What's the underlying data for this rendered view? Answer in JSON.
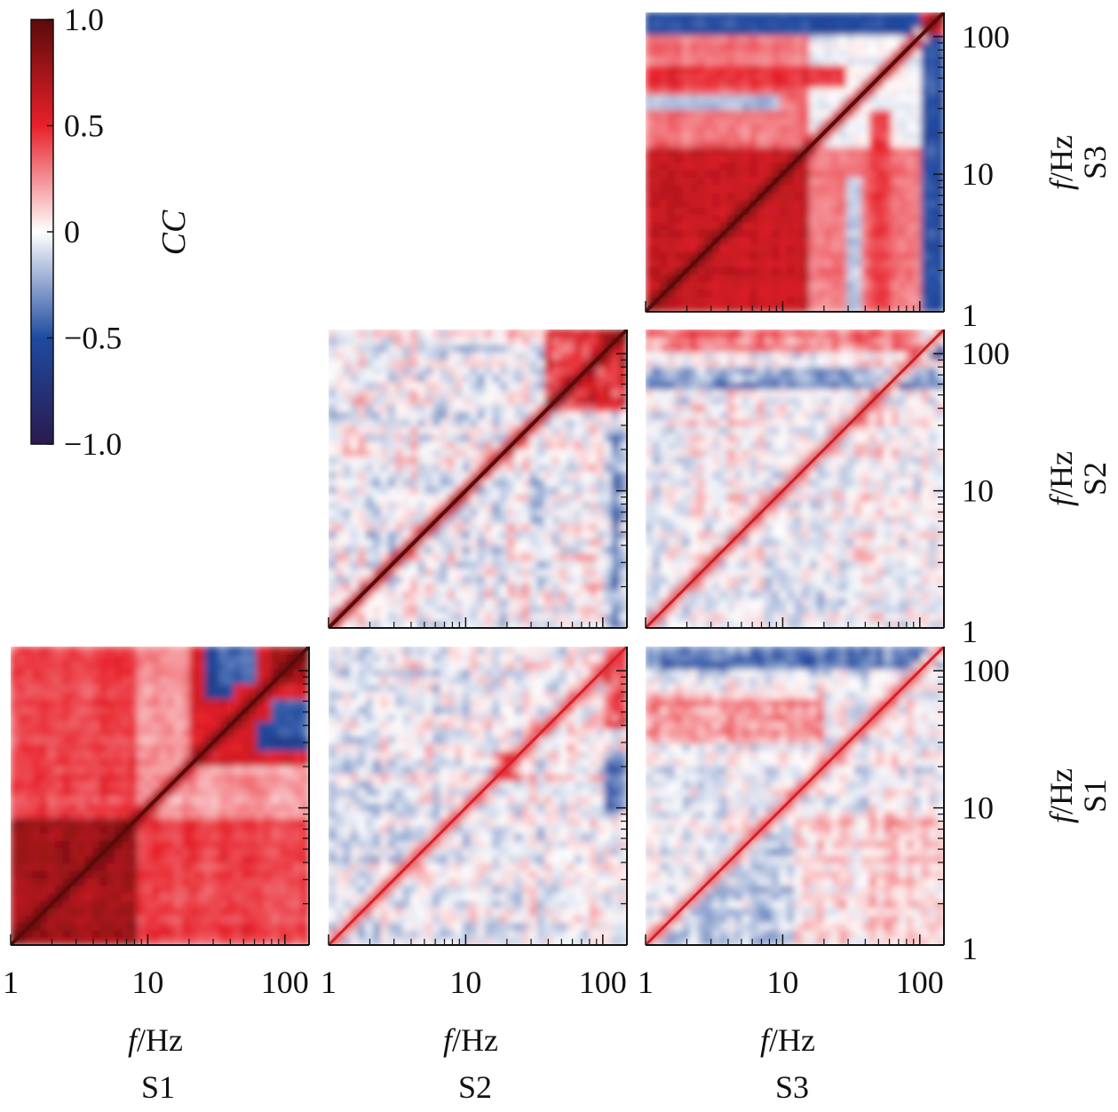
{
  "colorbar": {
    "label": "CC",
    "ticks": [
      1.0,
      0.5,
      0,
      -0.5,
      -1.0
    ],
    "tick_labels": [
      "1.0",
      "0.5",
      "0",
      "−0.5",
      "−1.0"
    ],
    "range": [
      -1.0,
      1.0
    ],
    "colors": [
      "#2a1a4f",
      "#1f4aa0",
      "#ffffff",
      "#e8202a",
      "#5c0a0a"
    ]
  },
  "axes": {
    "f_label_italic": "f",
    "f_label_unit": "/Hz",
    "scale": "log",
    "range": [
      1,
      150
    ],
    "tick_labels": [
      "1",
      "10",
      "100"
    ]
  },
  "subjects": [
    "S1",
    "S2",
    "S3"
  ],
  "chart_data": {
    "type": "heatmap",
    "layout": "lower-triangular matrix of cross-subject frequency-frequency correlation maps",
    "x_axis": "f/Hz (log, 1-150)",
    "y_axis": "f/Hz (log, 1-150)",
    "value": "CC",
    "vmin": -1.0,
    "vmax": 1.0,
    "panels": [
      {
        "row": "S3",
        "col": "S3",
        "description": "strong positive block 1-15 Hz; negative band ~100-150 Hz; diagonal ~1.0"
      },
      {
        "row": "S2",
        "col": "S2",
        "description": "mostly weak mixed correlations; diagonal ~1.0; positive block above 40 Hz"
      },
      {
        "row": "S2",
        "col": "S3",
        "description": "weak off-diagonal ridge; positive band near 100-150 Hz"
      },
      {
        "row": "S1",
        "col": "S1",
        "description": "strong positive block 1-8 Hz; negative patches ~40-100 Hz; diagonal ~1.0"
      },
      {
        "row": "S1",
        "col": "S2",
        "description": "weak mixed correlations; faint diagonal ridge"
      },
      {
        "row": "S1",
        "col": "S3",
        "description": "weak mixed correlations; faint diagonal ridge below 20 Hz"
      }
    ]
  }
}
